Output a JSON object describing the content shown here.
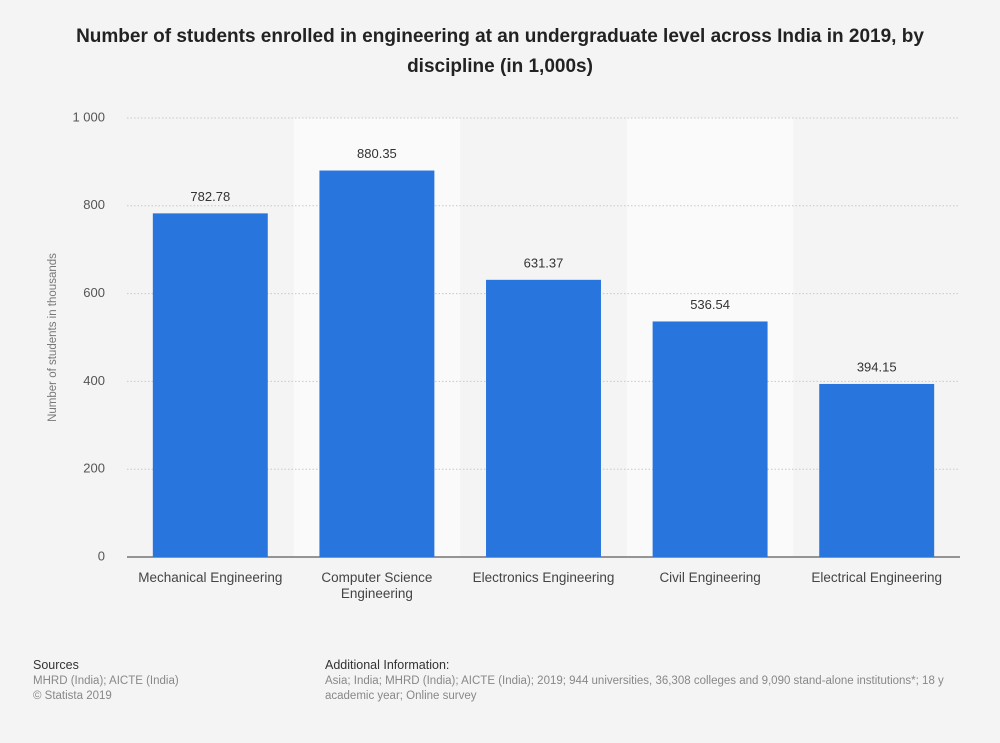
{
  "chart_data": {
    "type": "bar",
    "title": "Number of students enrolled in engineering at an undergraduate level across India in 2019, by discipline (in 1,000s)",
    "y_label": "Number of students in thousands",
    "categories": [
      "Mechanical Engineering",
      "Computer Science Engineering",
      "Electronics Engineering",
      "Civil Engineering",
      "Electrical Engineering"
    ],
    "values": [
      782.78,
      880.35,
      631.37,
      536.54,
      394.15
    ],
    "color": "#2876dd",
    "ylim": [
      0,
      1000
    ],
    "yticks": [
      0,
      200,
      400,
      600,
      800,
      {
        "value": 1000,
        "label": "1 000"
      }
    ],
    "grid": true
  },
  "footer": {
    "sources_title": "Sources",
    "sources": "MHRD (India); AICTE (India)",
    "copyright": "© Statista 2019",
    "additional_title": "Additional Information:",
    "additional_lines": [
      "Asia; India; MHRD (India); AICTE (India); 2019; 944 universities, 36,308 colleges and 9,090 stand-alone institutions*; 18 y",
      "academic year; Online survey"
    ]
  }
}
